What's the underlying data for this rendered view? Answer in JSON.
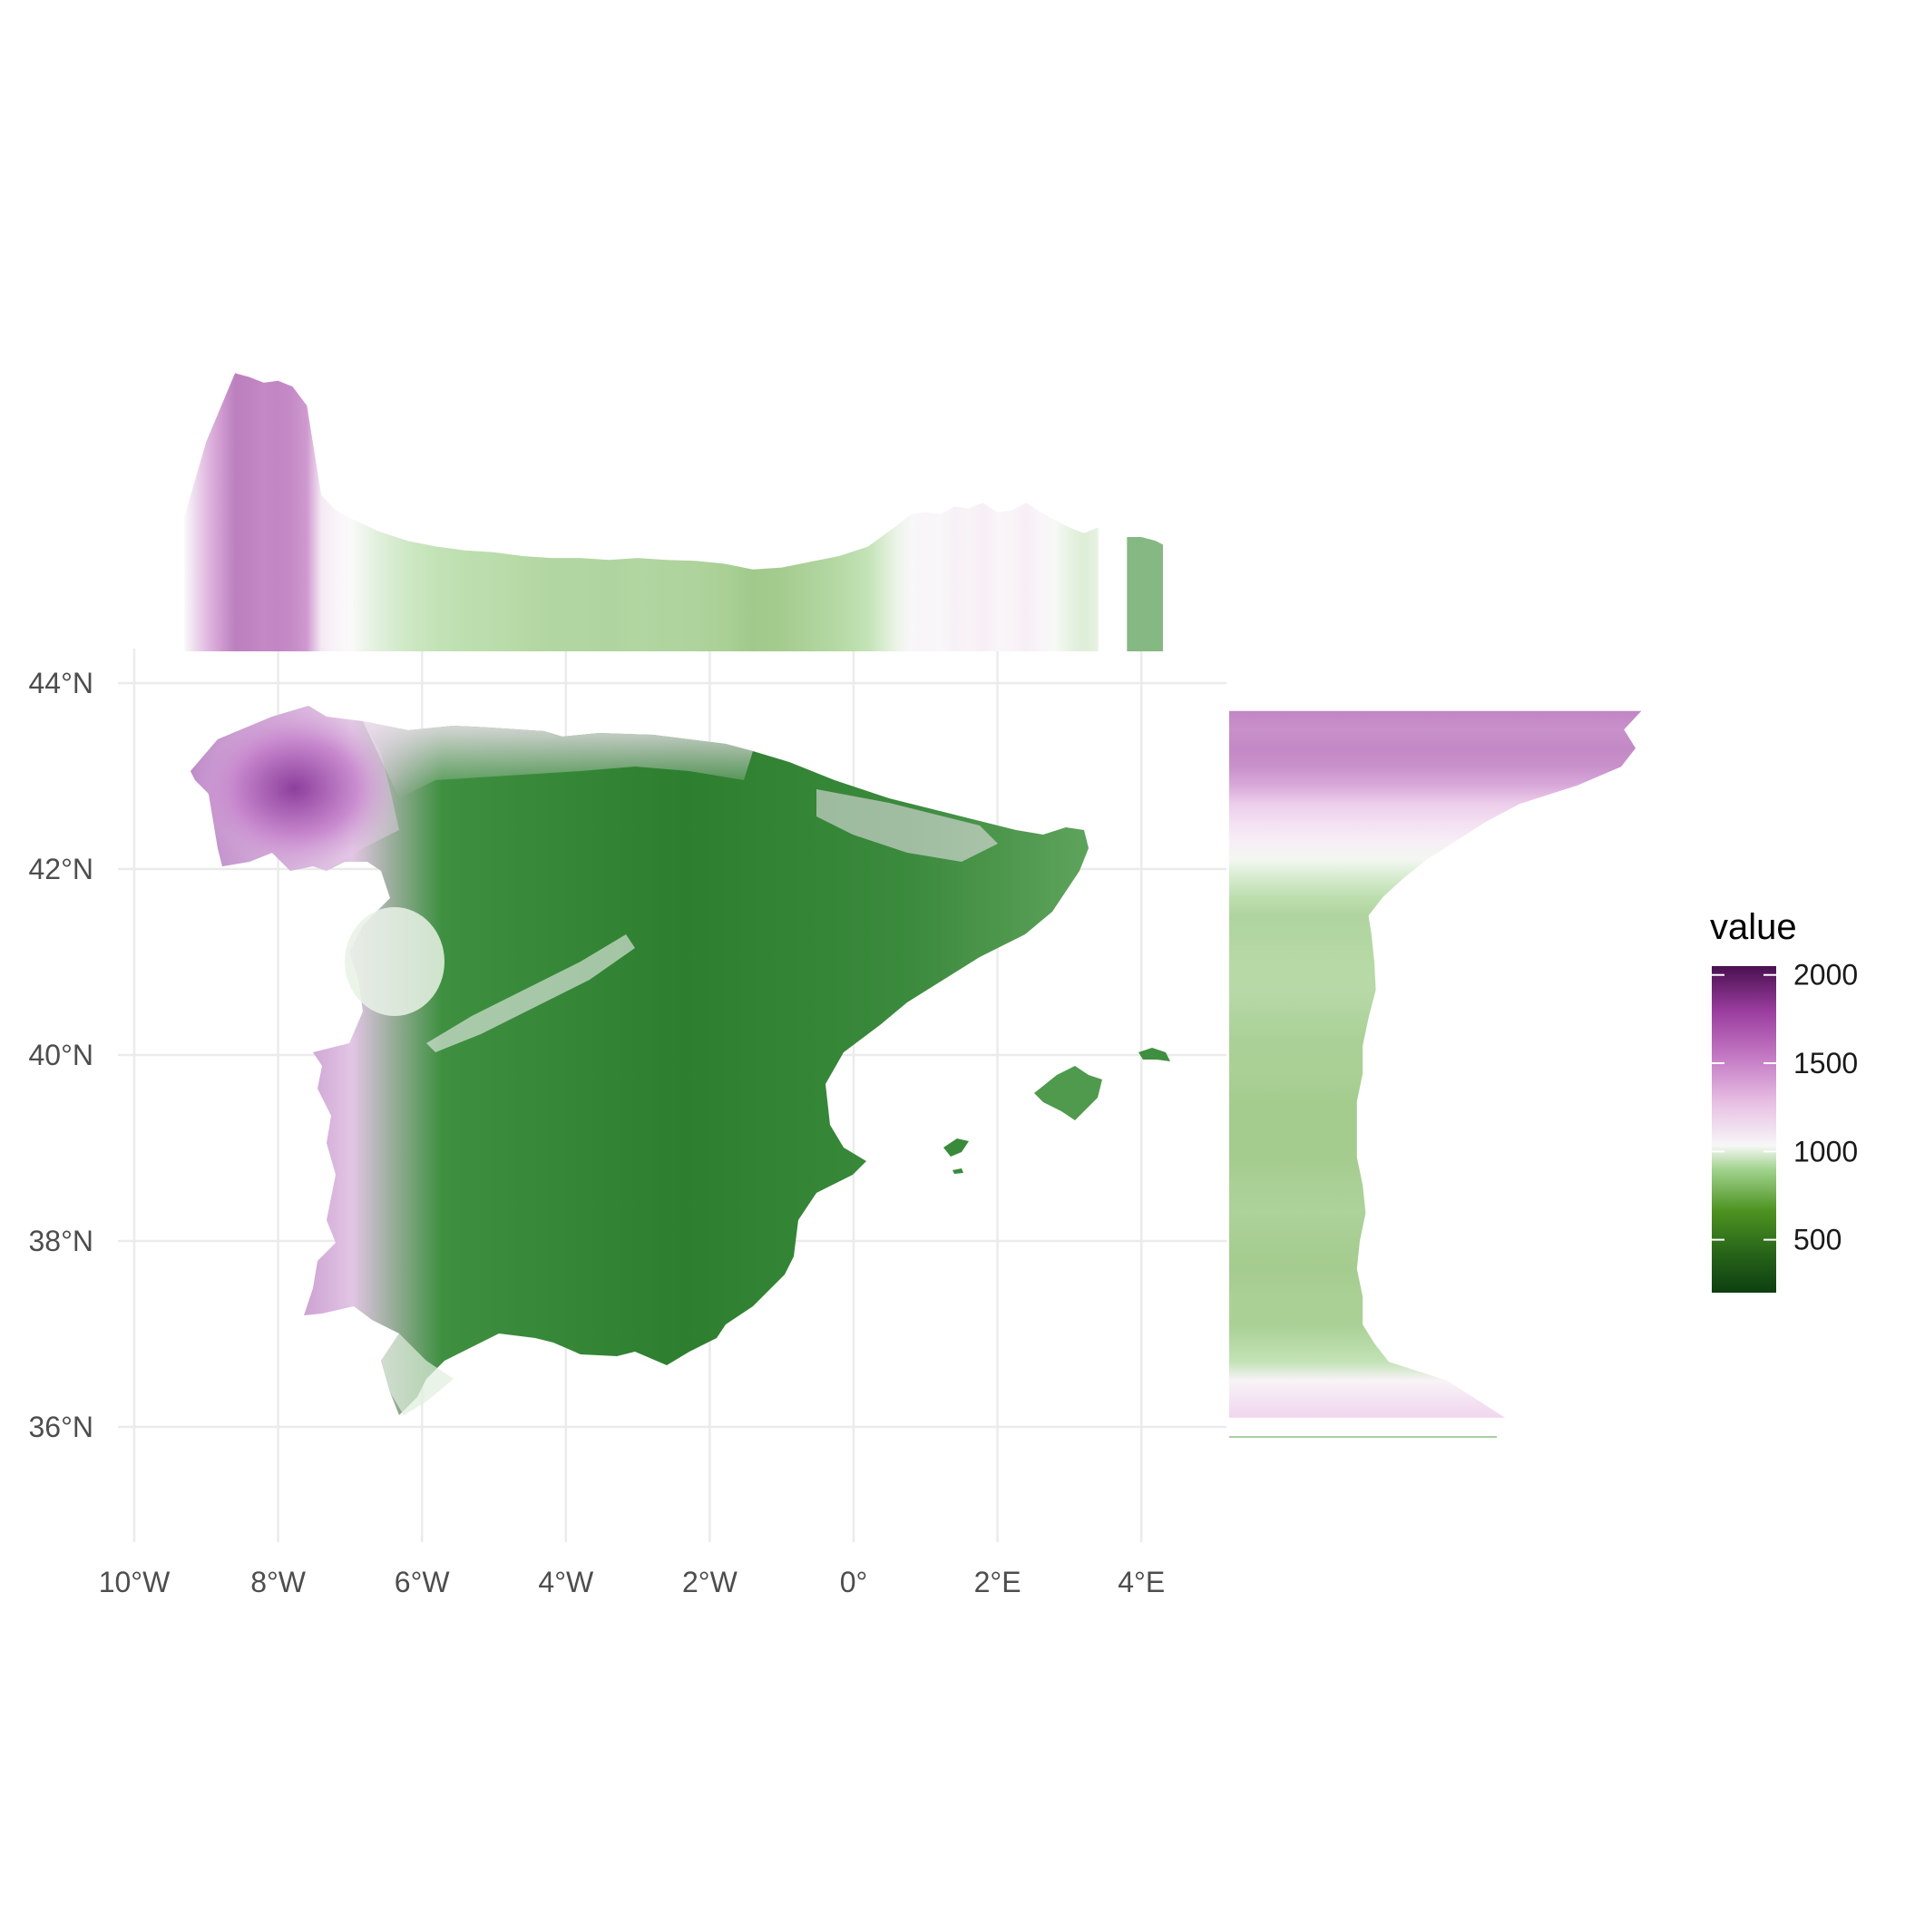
{
  "map": {
    "x_ticks": [
      "10°W",
      "8°W",
      "6°W",
      "4°W",
      "2°W",
      "0°",
      "2°E",
      "4°E"
    ],
    "x_tick_values": [
      -10,
      -8,
      -6,
      -4,
      -2,
      0,
      2,
      4
    ],
    "y_ticks": [
      "44°N",
      "42°N",
      "40°N",
      "38°N",
      "36°N"
    ],
    "y_tick_values": [
      44,
      42,
      40,
      38,
      36
    ],
    "xlim": [
      -10,
      5.2
    ],
    "ylim": [
      35,
      44.2
    ],
    "grid": true
  },
  "legend": {
    "title": "value",
    "labels": [
      "2000",
      "1500",
      "1000",
      "500"
    ],
    "label_values": [
      2000,
      1500,
      1000,
      500
    ],
    "range": [
      200,
      2050
    ],
    "palette": [
      "#276419",
      "#4d9221",
      "#7fbc41",
      "#b8e186",
      "#f7f7f7",
      "#f1b6da",
      "#de77ae",
      "#c51b7d",
      "#40004b"
    ]
  },
  "chart_data": {
    "type": "heatmap",
    "description_values": "Raster of values over the Iberian Peninsula and Balearic Islands with marginal mean profiles",
    "top_profile": {
      "x_lon": [
        -9.3,
        -9.0,
        -8.8,
        -8.6,
        -8.4,
        -8.2,
        -8.0,
        -7.8,
        -7.6,
        -7.4,
        -7.2,
        -7.0,
        -6.6,
        -6.2,
        -5.8,
        -5.4,
        -5.0,
        -4.6,
        -4.2,
        -3.8,
        -3.4,
        -3.0,
        -2.6,
        -2.2,
        -1.8,
        -1.4,
        -1.0,
        -0.6,
        -0.2,
        0.2,
        0.6,
        0.8,
        1.0,
        1.2,
        1.4,
        1.6,
        1.8,
        2.0,
        2.2,
        2.4,
        2.6,
        2.8,
        3.0,
        3.2,
        3.4
      ],
      "values": [
        1010,
        1400,
        1580,
        1760,
        1740,
        1710,
        1720,
        1690,
        1590,
        1120,
        1040,
        1000,
        930,
        880,
        850,
        830,
        820,
        800,
        790,
        790,
        780,
        790,
        780,
        775,
        760,
        730,
        740,
        770,
        800,
        850,
        960,
        1020,
        1030,
        1020,
        1060,
        1050,
        1080,
        1030,
        1040,
        1080,
        1030,
        990,
        950,
        920,
        950
      ],
      "x2_lon": [
        3.8,
        4.0,
        4.2,
        4.3
      ],
      "values2": [
        900,
        900,
        880,
        860
      ]
    },
    "right_profile": {
      "y_lat": [
        43.7,
        43.5,
        43.3,
        43.1,
        42.9,
        42.7,
        42.5,
        42.3,
        42.1,
        41.9,
        41.7,
        41.5,
        41.3,
        41.0,
        40.7,
        40.4,
        40.1,
        39.8,
        39.5,
        39.2,
        38.9,
        38.6,
        38.3,
        38.0,
        37.7,
        37.4,
        37.1,
        36.9,
        36.7,
        36.5,
        36.3,
        36.1
      ],
      "values": [
        1720,
        1660,
        1700,
        1650,
        1500,
        1300,
        1180,
        1080,
        980,
        900,
        830,
        780,
        790,
        800,
        805,
        780,
        760,
        760,
        740,
        740,
        740,
        760,
        770,
        750,
        740,
        760,
        760,
        800,
        850,
        1050,
        1150,
        1250
      ]
    }
  }
}
